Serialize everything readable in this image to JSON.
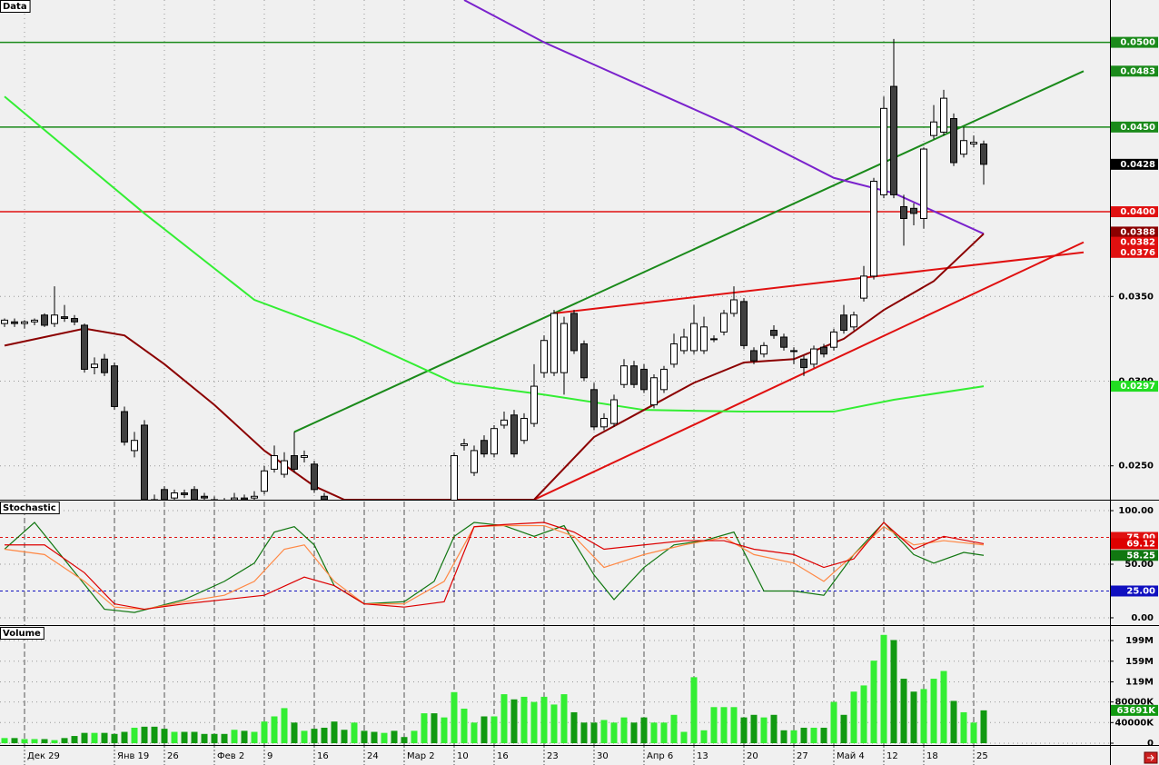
{
  "chart_data": [
    {
      "type": "candlestick",
      "title": "Data",
      "categories": [
        null,
        null,
        "Дек 29",
        null,
        null,
        null,
        null,
        null,
        null,
        null,
        null,
        "Янв 19",
        null,
        null,
        null,
        null,
        "26",
        null,
        null,
        null,
        null,
        "Фев 2",
        null,
        null,
        null,
        null,
        "9",
        null,
        null,
        null,
        null,
        "16",
        null,
        null,
        null,
        null,
        "24",
        null,
        null,
        null,
        "Мар 2",
        null,
        null,
        null,
        null,
        "10",
        null,
        null,
        null,
        "16",
        null,
        null,
        null,
        null,
        "23",
        null,
        null,
        null,
        null,
        "30",
        null,
        null,
        null,
        null,
        "Апр 6",
        null,
        null,
        null,
        null,
        "13",
        null,
        null,
        null,
        null,
        "20",
        null,
        null,
        null,
        null,
        "27",
        null,
        null,
        null,
        "Май 4",
        null,
        null,
        null,
        null,
        "12",
        null,
        null,
        null,
        "18",
        null,
        null,
        null,
        null,
        "25",
        null
      ],
      "open": [
        0.0334,
        0.0335,
        0.0334,
        0.0335,
        0.0339,
        0.0334,
        0.0338,
        0.0337,
        0.0333,
        0.0308,
        0.0313,
        0.0309,
        0.0282,
        0.0259,
        0.0274,
        0.023,
        0.0236,
        0.0231,
        0.0234,
        0.0236,
        0.0232,
        0.023,
        0.0229,
        0.023,
        0.0231,
        0.0231,
        0.0235,
        0.0248,
        0.0245,
        0.0256,
        0.0255,
        0.0251,
        0.0232,
        0.0228,
        0.0226,
        0.0224,
        0.0225,
        0.0223,
        0.0222,
        0.0224,
        0.0221,
        0.022,
        0.0222,
        0.0224,
        0.0223,
        0.0225,
        0.0262,
        0.0246,
        0.0265,
        0.0257,
        0.0274,
        0.028,
        0.0265,
        0.0275,
        0.0305,
        0.0305,
        0.0305,
        0.034,
        0.0322,
        0.0295,
        0.0273,
        0.0275,
        0.0298,
        0.0309,
        0.0307,
        0.0286,
        0.0295,
        0.031,
        0.0318,
        0.0318,
        0.0318,
        0.0325,
        0.0329,
        0.034,
        0.0347,
        0.0318,
        0.0316,
        0.033,
        0.0326,
        0.0318,
        0.0313,
        0.031,
        0.032,
        0.032,
        0.0339,
        0.0332,
        0.0349,
        0.0362,
        0.041,
        0.0474,
        0.0403,
        0.0402,
        0.0396,
        0.0445,
        0.0447,
        0.0455,
        0.0434,
        0.044,
        0.044
      ],
      "high": [
        0.0337,
        0.0337,
        0.0336,
        0.0337,
        0.034,
        0.0356,
        0.0345,
        0.0339,
        0.0334,
        0.0314,
        0.0316,
        0.0311,
        0.0285,
        0.027,
        0.0277,
        0.0233,
        0.0238,
        0.0236,
        0.0236,
        0.0238,
        0.0234,
        0.0232,
        0.0231,
        0.0234,
        0.0233,
        0.0235,
        0.025,
        0.0262,
        0.0258,
        0.027,
        0.0259,
        0.0253,
        0.0234,
        0.023,
        0.0229,
        0.0227,
        0.0228,
        0.0226,
        0.0225,
        0.0227,
        0.0224,
        0.0223,
        0.0226,
        0.0227,
        0.0226,
        0.0258,
        0.0266,
        0.0262,
        0.0268,
        0.0274,
        0.0282,
        0.0283,
        0.0281,
        0.031,
        0.0327,
        0.0342,
        0.0338,
        0.0342,
        0.0324,
        0.0299,
        0.0281,
        0.0292,
        0.0313,
        0.0312,
        0.031,
        0.0304,
        0.0309,
        0.0328,
        0.0331,
        0.0345,
        0.0338,
        0.0327,
        0.0342,
        0.0356,
        0.0349,
        0.032,
        0.0323,
        0.0333,
        0.0328,
        0.032,
        0.0315,
        0.0321,
        0.0322,
        0.0331,
        0.0345,
        0.0341,
        0.0368,
        0.042,
        0.0468,
        0.0502,
        0.041,
        0.0405,
        0.0438,
        0.0463,
        0.0472,
        0.0458,
        0.045,
        0.0445,
        0.0442
      ],
      "low": [
        0.0332,
        0.0332,
        0.0331,
        0.0333,
        0.0332,
        0.0332,
        0.0335,
        0.0333,
        0.0305,
        0.0304,
        0.0303,
        0.0283,
        0.0262,
        0.0255,
        0.0228,
        0.0226,
        0.0228,
        0.0229,
        0.0231,
        0.0228,
        0.0229,
        0.0227,
        0.0226,
        0.0228,
        0.0228,
        0.0229,
        0.0233,
        0.0246,
        0.0243,
        0.0246,
        0.0252,
        0.0234,
        0.0228,
        0.0224,
        0.0222,
        0.022,
        0.0221,
        0.0219,
        0.0218,
        0.022,
        0.0217,
        0.0216,
        0.0219,
        0.022,
        0.0219,
        0.0222,
        0.0259,
        0.0244,
        0.0255,
        0.0255,
        0.0272,
        0.0255,
        0.0263,
        0.0273,
        0.0302,
        0.0303,
        0.0292,
        0.0316,
        0.03,
        0.0271,
        0.0271,
        0.0273,
        0.0296,
        0.0296,
        0.0293,
        0.0284,
        0.0293,
        0.0308,
        0.0316,
        0.0316,
        0.0316,
        0.0323,
        0.0327,
        0.0338,
        0.0319,
        0.031,
        0.0314,
        0.0325,
        0.0318,
        0.031,
        0.0303,
        0.0308,
        0.0314,
        0.0318,
        0.0328,
        0.033,
        0.0347,
        0.036,
        0.0408,
        0.0408,
        0.038,
        0.0392,
        0.039,
        0.0443,
        0.0445,
        0.0427,
        0.0432,
        0.0438,
        0.0416
      ],
      "close": [
        0.0336,
        0.0334,
        0.0335,
        0.0336,
        0.0333,
        0.0339,
        0.0337,
        0.0335,
        0.0307,
        0.031,
        0.0305,
        0.0285,
        0.0264,
        0.0265,
        0.023,
        0.0228,
        0.023,
        0.0234,
        0.0233,
        0.023,
        0.0231,
        0.0229,
        0.0228,
        0.0231,
        0.023,
        0.0232,
        0.0247,
        0.0256,
        0.0253,
        0.0248,
        0.0256,
        0.0236,
        0.023,
        0.0226,
        0.0224,
        0.0225,
        0.0223,
        0.0222,
        0.0224,
        0.0221,
        0.022,
        0.0222,
        0.0224,
        0.0223,
        0.0225,
        0.0256,
        0.0263,
        0.0259,
        0.0257,
        0.0272,
        0.0277,
        0.0257,
        0.0278,
        0.0297,
        0.0324,
        0.034,
        0.0334,
        0.0318,
        0.0302,
        0.0273,
        0.0278,
        0.0289,
        0.0309,
        0.0298,
        0.0295,
        0.0302,
        0.0307,
        0.0322,
        0.0326,
        0.0334,
        0.0332,
        0.0325,
        0.034,
        0.0348,
        0.0321,
        0.0312,
        0.0321,
        0.0327,
        0.032,
        0.0318,
        0.0308,
        0.0319,
        0.0316,
        0.0329,
        0.033,
        0.0339,
        0.0362,
        0.0418,
        0.0461,
        0.041,
        0.0396,
        0.0399,
        0.0437,
        0.0453,
        0.0467,
        0.0429,
        0.0442,
        0.0441,
        0.0428
      ],
      "up_color": "#ffffff",
      "down_color": "#404040",
      "ylim": [
        0.023,
        0.0525
      ],
      "yticks": [
        {
          "value": 0.025,
          "label": "0.0250"
        },
        {
          "value": 0.03,
          "label": "0.0300"
        },
        {
          "value": 0.035,
          "label": "0.0350"
        }
      ],
      "grid": true,
      "levels": [
        {
          "value": 0.05,
          "label": "0.0500",
          "color": "#1a8a1a"
        },
        {
          "value": 0.045,
          "label": "0.0450",
          "color": "#1a8a1a"
        },
        {
          "value": 0.04,
          "label": "0.0400",
          "color": "#e01010"
        }
      ],
      "markers": [
        {
          "value": 0.0483,
          "label": "0.0483",
          "color": "#1a8a1a"
        },
        {
          "value": 0.0428,
          "label": "0.0428",
          "color": "#000000"
        },
        {
          "value": 0.0388,
          "label": "0.0388",
          "color": "#8b0000"
        },
        {
          "value": 0.0382,
          "label": "0.0382",
          "color": "#e01010"
        },
        {
          "value": 0.0376,
          "label": "0.0376",
          "color": "#e01010"
        },
        {
          "value": 0.0297,
          "label": "0.0297",
          "color": "#22dd22"
        }
      ],
      "lines": [
        {
          "color": "#1a8a1a",
          "x": [
            29,
            108
          ],
          "values": [
            0.027,
            0.0483
          ]
        },
        {
          "color": "#e01010",
          "x": [
            55,
            108
          ],
          "values": [
            0.034,
            0.0376
          ]
        },
        {
          "color": "#e01010",
          "x": [
            53,
            108
          ],
          "values": [
            0.023,
            0.0382
          ]
        },
        {
          "color": "#7a22cc",
          "x": [
            46,
            54,
            73,
            83,
            89,
            98
          ],
          "values": [
            0.0525,
            0.05,
            0.045,
            0.042,
            0.0411,
            0.0387
          ]
        },
        {
          "color": "#33ee33",
          "x": [
            0,
            14,
            25,
            35,
            45,
            54,
            64,
            74,
            83,
            89,
            98
          ],
          "values": [
            0.0468,
            0.0399,
            0.0348,
            0.0326,
            0.0299,
            0.0292,
            0.0283,
            0.0282,
            0.0282,
            0.0289,
            0.0297
          ]
        },
        {
          "color": "#8b0000",
          "x": [
            0,
            8,
            12,
            16,
            21,
            26,
            31,
            34,
            53,
            59,
            64,
            69,
            74,
            79,
            84,
            88,
            93,
            98
          ],
          "values": [
            0.0321,
            0.0331,
            0.0327,
            0.031,
            0.0286,
            0.0259,
            0.0238,
            0.023,
            0.023,
            0.0267,
            0.0283,
            0.0299,
            0.0311,
            0.0313,
            0.0325,
            0.0342,
            0.0359,
            0.0387
          ]
        }
      ]
    },
    {
      "type": "line",
      "title": "Stochastic",
      "ylim": [
        -6.8,
        108.5
      ],
      "yticks": [
        {
          "value": 100,
          "label": "100.00"
        },
        {
          "value": 50,
          "label": "50.00"
        },
        {
          "value": 0,
          "label": "0.00"
        }
      ],
      "levels": [
        {
          "value": 75,
          "label": "75.00",
          "color": "#e01010"
        },
        {
          "value": 25,
          "label": "25.00",
          "color": "#1010c0"
        }
      ],
      "dashed": true,
      "series": [
        {
          "color": "#117711",
          "x": [
            0,
            3,
            10,
            13,
            18,
            22,
            25,
            27,
            29,
            31,
            33,
            36,
            40,
            43,
            45,
            47,
            50,
            53,
            56,
            59,
            61,
            64,
            67,
            70,
            73,
            76,
            79,
            82,
            85,
            88,
            91,
            93,
            96,
            98
          ],
          "values": [
            64,
            89,
            8,
            5,
            17,
            34,
            51,
            80,
            85,
            68,
            30,
            13,
            15,
            34,
            76,
            89,
            86,
            76,
            86,
            40,
            17,
            47,
            68,
            72,
            80,
            25,
            25,
            21,
            59,
            89,
            59,
            51,
            61,
            58.25
          ]
        },
        {
          "color": "#ff8844",
          "x": [
            0,
            4,
            8,
            11,
            14,
            18,
            22,
            25,
            28,
            30,
            33,
            36,
            40,
            44,
            47,
            50,
            54,
            57,
            60,
            64,
            68,
            72,
            75,
            79,
            82,
            85,
            88,
            91,
            94,
            98
          ],
          "values": [
            64,
            59,
            34,
            10,
            8,
            15,
            21,
            34,
            64,
            68,
            34,
            13,
            13,
            34,
            85,
            86,
            86,
            76,
            47,
            59,
            68,
            75,
            59,
            51,
            34,
            59,
            85,
            68,
            72,
            68
          ]
        },
        {
          "color": "#dd0000",
          "x": [
            0,
            4,
            8,
            11,
            14,
            18,
            22,
            26,
            30,
            33,
            36,
            40,
            44,
            47,
            50,
            54,
            57,
            60,
            64,
            68,
            72,
            75,
            79,
            82,
            85,
            88,
            91,
            94,
            98
          ],
          "values": [
            68,
            68,
            42,
            13,
            8,
            13,
            17,
            21,
            38,
            30,
            13,
            10,
            15,
            85,
            87,
            89,
            80,
            64,
            68,
            72,
            72,
            64,
            59,
            47,
            55,
            89,
            64,
            76,
            69.12
          ]
        }
      ],
      "markers": [
        {
          "value": 69.12,
          "label": "69.12",
          "color": "#dd0000"
        },
        {
          "value": 58.25,
          "label": "58.25",
          "color": "#117711"
        }
      ]
    },
    {
      "type": "bar",
      "title": "Volume",
      "values": [
        10000000,
        10000000,
        8000000,
        8000000,
        8000000,
        6000000,
        10000000,
        14000000,
        20000000,
        20000000,
        20000000,
        18000000,
        22000000,
        30000000,
        32000000,
        32000000,
        28000000,
        22000000,
        22000000,
        22000000,
        18000000,
        18000000,
        18000000,
        26000000,
        24000000,
        22000000,
        42000000,
        52000000,
        68000000,
        40000000,
        24000000,
        28000000,
        30000000,
        42000000,
        26000000,
        40000000,
        24000000,
        22000000,
        20000000,
        24000000,
        12000000,
        24000000,
        58000000,
        58000000,
        50000000,
        99000000,
        67000000,
        40000000,
        52000000,
        52000000,
        95000000,
        85000000,
        90000000,
        80000000,
        90000000,
        75000000,
        95000000,
        60000000,
        40000000,
        40000000,
        45000000,
        40000000,
        50000000,
        40000000,
        50000000,
        40000000,
        40000000,
        55000000,
        22000000,
        128000000,
        25000000,
        70000000,
        70000000,
        70000000,
        50000000,
        55000000,
        50000000,
        55000000,
        25000000,
        25000000,
        30000000,
        30000000,
        30000000,
        80000000,
        55000000,
        100000000,
        112000000,
        160000000,
        210000000,
        200000000,
        125000000,
        100000000,
        105000000,
        125000000,
        140000000,
        82000000,
        60000000,
        40000000,
        63691000
      ],
      "up_color": "#33ee33",
      "down_color": "#119911",
      "ylim": [
        -3500000,
        225500000
      ],
      "yticks": [
        {
          "value": 199000000,
          "label": "199M"
        },
        {
          "value": 159000000,
          "label": "159M"
        },
        {
          "value": 119000000,
          "label": "119M"
        },
        {
          "value": 80000000,
          "label": "80000K"
        },
        {
          "value": 40000000,
          "label": "40000K"
        },
        0
      ],
      "markers": [
        {
          "value": 63691000,
          "label": "63691K",
          "color": "#119911"
        }
      ]
    }
  ]
}
